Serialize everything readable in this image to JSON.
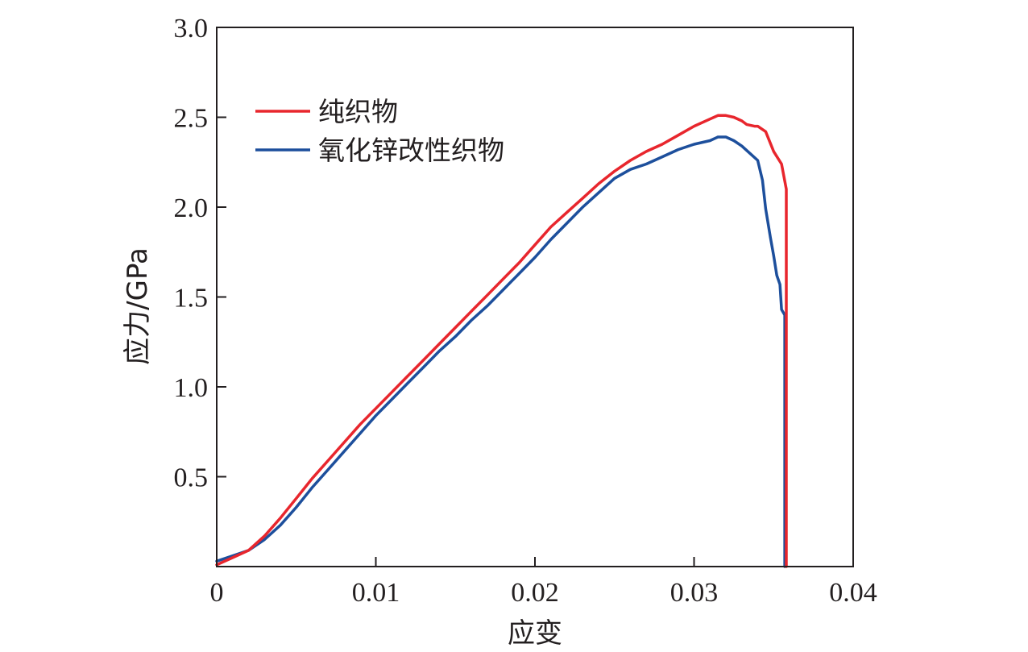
{
  "chart_data": {
    "type": "line",
    "xlabel": "应变",
    "ylabel": "应力/GPa",
    "xlim": [
      0,
      0.04
    ],
    "ylim": [
      0,
      3.0
    ],
    "x_ticks": [
      0,
      0.01,
      0.02,
      0.03,
      0.04
    ],
    "x_tick_labels": [
      "0",
      "0.01",
      "0.02",
      "0.03",
      "0.04"
    ],
    "y_ticks": [
      0.5,
      1.0,
      1.5,
      2.0,
      2.5,
      3.0
    ],
    "y_tick_labels": [
      "0.5",
      "1.0",
      "1.5",
      "2.0",
      "2.5",
      "3.0"
    ],
    "grid": false,
    "legend_position": "top-left",
    "series": [
      {
        "name": "纯织物",
        "color": "#e8262d",
        "x": [
          0,
          0.001,
          0.002,
          0.003,
          0.004,
          0.005,
          0.006,
          0.007,
          0.008,
          0.009,
          0.01,
          0.011,
          0.012,
          0.013,
          0.014,
          0.015,
          0.016,
          0.017,
          0.018,
          0.019,
          0.02,
          0.021,
          0.022,
          0.023,
          0.024,
          0.025,
          0.026,
          0.027,
          0.028,
          0.029,
          0.03,
          0.031,
          0.0315,
          0.032,
          0.0325,
          0.033,
          0.0333,
          0.0338,
          0.034,
          0.0345,
          0.035,
          0.0355,
          0.0358,
          0.0358,
          0.0358
        ],
        "y": [
          0.01,
          0.05,
          0.09,
          0.17,
          0.27,
          0.38,
          0.49,
          0.59,
          0.69,
          0.79,
          0.88,
          0.97,
          1.06,
          1.15,
          1.24,
          1.33,
          1.42,
          1.51,
          1.6,
          1.69,
          1.79,
          1.89,
          1.97,
          2.05,
          2.13,
          2.2,
          2.26,
          2.31,
          2.35,
          2.4,
          2.45,
          2.49,
          2.51,
          2.51,
          2.5,
          2.48,
          2.46,
          2.45,
          2.45,
          2.42,
          2.31,
          2.24,
          2.1,
          1.45,
          0.0
        ]
      },
      {
        "name": "氧化锌改性织物",
        "color": "#1d4f9c",
        "x": [
          0,
          0.001,
          0.002,
          0.003,
          0.004,
          0.005,
          0.006,
          0.007,
          0.008,
          0.009,
          0.01,
          0.011,
          0.012,
          0.013,
          0.014,
          0.015,
          0.016,
          0.017,
          0.018,
          0.019,
          0.02,
          0.021,
          0.022,
          0.023,
          0.024,
          0.025,
          0.026,
          0.027,
          0.028,
          0.029,
          0.03,
          0.031,
          0.0315,
          0.032,
          0.0325,
          0.033,
          0.0335,
          0.034,
          0.0343,
          0.0345,
          0.0348,
          0.035,
          0.0352,
          0.0354,
          0.0355,
          0.0357,
          0.0357
        ],
        "y": [
          0.03,
          0.06,
          0.09,
          0.15,
          0.23,
          0.33,
          0.44,
          0.54,
          0.64,
          0.74,
          0.84,
          0.93,
          1.02,
          1.11,
          1.2,
          1.28,
          1.37,
          1.45,
          1.54,
          1.63,
          1.72,
          1.82,
          1.91,
          2.0,
          2.08,
          2.16,
          2.21,
          2.24,
          2.28,
          2.32,
          2.35,
          2.37,
          2.39,
          2.39,
          2.37,
          2.34,
          2.3,
          2.26,
          2.15,
          1.99,
          1.83,
          1.73,
          1.62,
          1.57,
          1.43,
          1.4,
          0.0
        ]
      }
    ]
  }
}
